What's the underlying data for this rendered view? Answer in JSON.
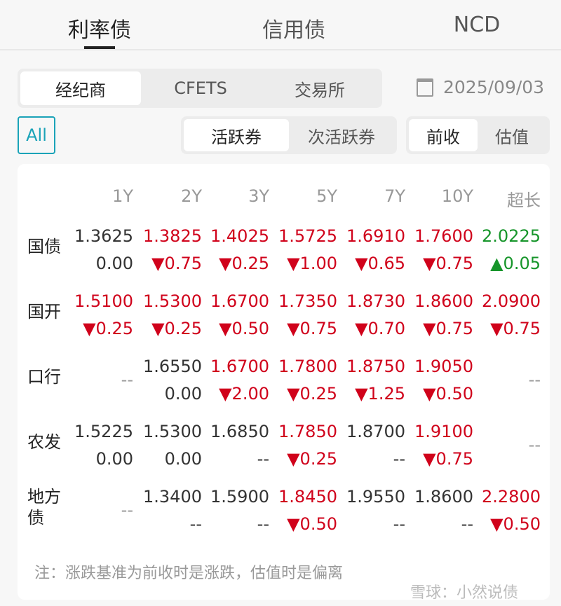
{
  "tabs": [
    {
      "label": "利率债",
      "active": true
    },
    {
      "label": "信用债",
      "active": false
    },
    {
      "label": "NCD",
      "active": false
    }
  ],
  "source_tabs": [
    {
      "label": "经纪商",
      "active": true
    },
    {
      "label": "CFETS",
      "active": false
    },
    {
      "label": "交易所",
      "active": false
    }
  ],
  "date": "2025/09/03",
  "all_label": "All",
  "bond_tabs": [
    {
      "label": "活跃券",
      "active": true
    },
    {
      "label": "次活跃券",
      "active": false
    }
  ],
  "basis_tabs": [
    {
      "label": "前收",
      "active": true
    },
    {
      "label": "估值",
      "active": false
    }
  ],
  "colors": {
    "up": "#16952a",
    "down": "#d0021b",
    "accent": "#1aa3b8"
  },
  "table": {
    "headers": [
      "1Y",
      "2Y",
      "3Y",
      "5Y",
      "7Y",
      "10Y",
      "超长"
    ],
    "rows": [
      {
        "label": "国债",
        "cells": [
          {
            "v": "1.3625",
            "c": "0.00",
            "vc": "dark",
            "cc": "dark"
          },
          {
            "v": "1.3825",
            "c": "▼0.75",
            "vc": "red",
            "cc": "red"
          },
          {
            "v": "1.4025",
            "c": "▼0.25",
            "vc": "red",
            "cc": "red"
          },
          {
            "v": "1.5725",
            "c": "▼1.00",
            "vc": "red",
            "cc": "red"
          },
          {
            "v": "1.6910",
            "c": "▼0.65",
            "vc": "red",
            "cc": "red"
          },
          {
            "v": "1.7600",
            "c": "▼0.75",
            "vc": "red",
            "cc": "red"
          },
          {
            "v": "2.0225",
            "c": "▲0.05",
            "vc": "green",
            "cc": "green"
          }
        ]
      },
      {
        "label": "国开",
        "cells": [
          {
            "v": "1.5100",
            "c": "▼0.25",
            "vc": "red",
            "cc": "red"
          },
          {
            "v": "1.5300",
            "c": "▼0.25",
            "vc": "red",
            "cc": "red"
          },
          {
            "v": "1.6700",
            "c": "▼0.50",
            "vc": "red",
            "cc": "red"
          },
          {
            "v": "1.7350",
            "c": "▼0.75",
            "vc": "red",
            "cc": "red"
          },
          {
            "v": "1.8730",
            "c": "▼0.70",
            "vc": "red",
            "cc": "red"
          },
          {
            "v": "1.8600",
            "c": "▼0.75",
            "vc": "red",
            "cc": "red"
          },
          {
            "v": "2.0900",
            "c": "▼0.75",
            "vc": "red",
            "cc": "red"
          }
        ]
      },
      {
        "label": "口行",
        "cells": [
          {
            "empty": "--"
          },
          {
            "v": "1.6550",
            "c": "0.00",
            "vc": "dark",
            "cc": "dark"
          },
          {
            "v": "1.6700",
            "c": "▼2.00",
            "vc": "red",
            "cc": "red"
          },
          {
            "v": "1.7800",
            "c": "▼0.25",
            "vc": "red",
            "cc": "red"
          },
          {
            "v": "1.8750",
            "c": "▼1.25",
            "vc": "red",
            "cc": "red"
          },
          {
            "v": "1.9050",
            "c": "▼0.50",
            "vc": "red",
            "cc": "red"
          },
          {
            "empty": "--"
          }
        ]
      },
      {
        "label": "农发",
        "cells": [
          {
            "v": "1.5225",
            "c": "0.00",
            "vc": "dark",
            "cc": "dark"
          },
          {
            "v": "1.5300",
            "c": "0.00",
            "vc": "dark",
            "cc": "dark"
          },
          {
            "v": "1.6850",
            "c": "--",
            "vc": "dark",
            "cc": "dark"
          },
          {
            "v": "1.7850",
            "c": "▼0.25",
            "vc": "red",
            "cc": "red"
          },
          {
            "v": "1.8700",
            "c": "--",
            "vc": "dark",
            "cc": "dark"
          },
          {
            "v": "1.9100",
            "c": "▼0.75",
            "vc": "red",
            "cc": "red"
          },
          {
            "empty": "--"
          }
        ]
      },
      {
        "label": "地方债",
        "cells": [
          {
            "empty": "--"
          },
          {
            "v": "1.3400",
            "c": "--",
            "vc": "dark",
            "cc": "dark"
          },
          {
            "v": "1.5900",
            "c": "--",
            "vc": "dark",
            "cc": "dark"
          },
          {
            "v": "1.8450",
            "c": "▼0.50",
            "vc": "red",
            "cc": "red"
          },
          {
            "v": "1.9550",
            "c": "--",
            "vc": "dark",
            "cc": "dark"
          },
          {
            "v": "1.8600",
            "c": "--",
            "vc": "dark",
            "cc": "dark"
          },
          {
            "v": "2.2800",
            "c": "▼0.50",
            "vc": "red",
            "cc": "red"
          }
        ]
      }
    ]
  },
  "note": "注：涨跌基准为前收时是涨跌，估值时是偏离",
  "watermark": "雪球：小然说债"
}
